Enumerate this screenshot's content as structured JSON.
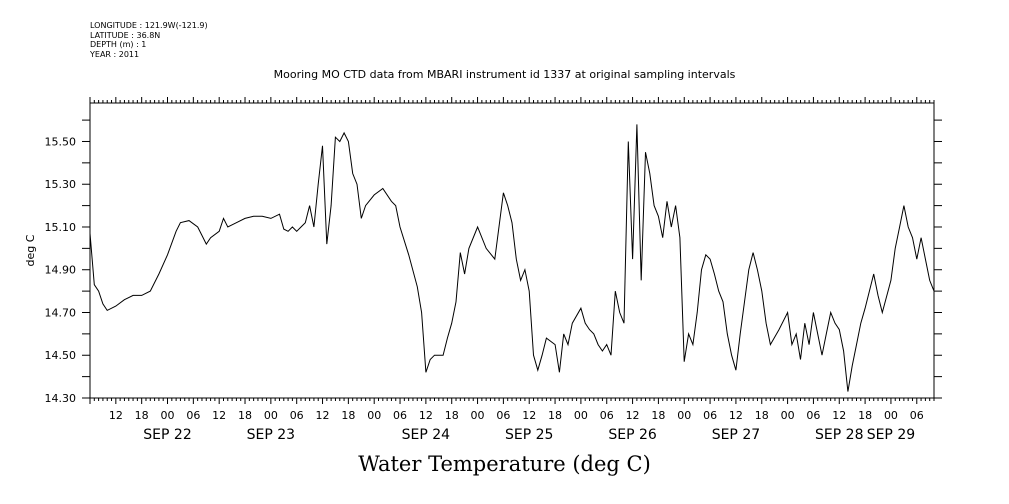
{
  "header": {
    "longitude": "LONGITUDE : 121.9W(-121.9)",
    "latitude": "LATITUDE : 36.8N",
    "depth": "DEPTH (m) : 1",
    "year": "YEAR : 2011"
  },
  "chart_data": {
    "type": "line",
    "title": "Mooring MO CTD data from MBARI instrument id 1337 at original sampling intervals",
    "xlabel": "Water Temperature (deg C)",
    "ylabel": "deg C",
    "ylim": [
      14.3,
      15.68
    ],
    "yticks": [
      "14.30",
      "14.50",
      "14.70",
      "14.90",
      "15.10",
      "15.30",
      "15.50"
    ],
    "xlim": [
      "2011-09-21T06:00",
      "2011-09-29T10:00"
    ],
    "hour_ticks": [
      "12",
      "18",
      "00",
      "06",
      "12",
      "18",
      "00",
      "06",
      "12",
      "18",
      "00",
      "06",
      "12",
      "18",
      "00",
      "06",
      "12",
      "18",
      "00",
      "06",
      "12",
      "18",
      "00",
      "06",
      "12",
      "18",
      "00",
      "06",
      "12",
      "18",
      "00",
      "06"
    ],
    "day_labels": [
      {
        "label": "SEP 22",
        "at": "2011-09-22T00:00"
      },
      {
        "label": "SEP 23",
        "at": "2011-09-23T00:00"
      },
      {
        "label": "SEP 24",
        "at": "2011-09-24T12:00"
      },
      {
        "label": "SEP 25",
        "at": "2011-09-25T12:00"
      },
      {
        "label": "SEP 26",
        "at": "2011-09-26T12:00"
      },
      {
        "label": "SEP 27",
        "at": "2011-09-27T12:00"
      },
      {
        "label": "SEP 28",
        "at": "2011-09-28T12:00"
      },
      {
        "label": "SEP 29",
        "at": "2011-09-29T00:00"
      }
    ],
    "grid": false,
    "series": [
      {
        "points": [
          [
            "2011-09-21T06:00",
            15.07
          ],
          [
            "2011-09-21T07:00",
            14.83
          ],
          [
            "2011-09-21T08:00",
            14.8
          ],
          [
            "2011-09-21T09:00",
            14.74
          ],
          [
            "2011-09-21T10:00",
            14.71
          ],
          [
            "2011-09-21T12:00",
            14.73
          ],
          [
            "2011-09-21T14:00",
            14.76
          ],
          [
            "2011-09-21T16:00",
            14.78
          ],
          [
            "2011-09-21T18:00",
            14.78
          ],
          [
            "2011-09-21T20:00",
            14.8
          ],
          [
            "2011-09-21T22:00",
            14.88
          ],
          [
            "2011-09-22T00:00",
            14.97
          ],
          [
            "2011-09-22T02:00",
            15.08
          ],
          [
            "2011-09-22T03:00",
            15.12
          ],
          [
            "2011-09-22T05:00",
            15.13
          ],
          [
            "2011-09-22T07:00",
            15.1
          ],
          [
            "2011-09-22T08:00",
            15.06
          ],
          [
            "2011-09-22T09:00",
            15.02
          ],
          [
            "2011-09-22T10:00",
            15.05
          ],
          [
            "2011-09-22T12:00",
            15.08
          ],
          [
            "2011-09-22T13:00",
            15.14
          ],
          [
            "2011-09-22T14:00",
            15.1
          ],
          [
            "2011-09-22T16:00",
            15.12
          ],
          [
            "2011-09-22T18:00",
            15.14
          ],
          [
            "2011-09-22T20:00",
            15.15
          ],
          [
            "2011-09-22T22:00",
            15.15
          ],
          [
            "2011-09-23T00:00",
            15.14
          ],
          [
            "2011-09-23T02:00",
            15.16
          ],
          [
            "2011-09-23T03:00",
            15.09
          ],
          [
            "2011-09-23T04:00",
            15.08
          ],
          [
            "2011-09-23T05:00",
            15.1
          ],
          [
            "2011-09-23T06:00",
            15.08
          ],
          [
            "2011-09-23T07:00",
            15.1
          ],
          [
            "2011-09-23T08:00",
            15.12
          ],
          [
            "2011-09-23T09:00",
            15.2
          ],
          [
            "2011-09-23T10:00",
            15.1
          ],
          [
            "2011-09-23T11:00",
            15.3
          ],
          [
            "2011-09-23T12:00",
            15.48
          ],
          [
            "2011-09-23T13:00",
            15.02
          ],
          [
            "2011-09-23T14:00",
            15.2
          ],
          [
            "2011-09-23T15:00",
            15.52
          ],
          [
            "2011-09-23T16:00",
            15.5
          ],
          [
            "2011-09-23T17:00",
            15.54
          ],
          [
            "2011-09-23T18:00",
            15.5
          ],
          [
            "2011-09-23T19:00",
            15.35
          ],
          [
            "2011-09-23T20:00",
            15.3
          ],
          [
            "2011-09-23T21:00",
            15.14
          ],
          [
            "2011-09-23T22:00",
            15.2
          ],
          [
            "2011-09-24T00:00",
            15.25
          ],
          [
            "2011-09-24T02:00",
            15.28
          ],
          [
            "2011-09-24T04:00",
            15.22
          ],
          [
            "2011-09-24T05:00",
            15.2
          ],
          [
            "2011-09-24T06:00",
            15.1
          ],
          [
            "2011-09-24T08:00",
            14.97
          ],
          [
            "2011-09-24T10:00",
            14.82
          ],
          [
            "2011-09-24T11:00",
            14.7
          ],
          [
            "2011-09-24T12:00",
            14.42
          ],
          [
            "2011-09-24T13:00",
            14.48
          ],
          [
            "2011-09-24T14:00",
            14.5
          ],
          [
            "2011-09-24T16:00",
            14.5
          ],
          [
            "2011-09-24T17:00",
            14.58
          ],
          [
            "2011-09-24T18:00",
            14.65
          ],
          [
            "2011-09-24T19:00",
            14.75
          ],
          [
            "2011-09-24T20:00",
            14.98
          ],
          [
            "2011-09-24T21:00",
            14.88
          ],
          [
            "2011-09-24T22:00",
            15.0
          ],
          [
            "2011-09-25T00:00",
            15.1
          ],
          [
            "2011-09-25T02:00",
            15.0
          ],
          [
            "2011-09-25T04:00",
            14.95
          ],
          [
            "2011-09-25T06:00",
            15.26
          ],
          [
            "2011-09-25T07:00",
            15.2
          ],
          [
            "2011-09-25T08:00",
            15.12
          ],
          [
            "2011-09-25T09:00",
            14.95
          ],
          [
            "2011-09-25T10:00",
            14.85
          ],
          [
            "2011-09-25T11:00",
            14.9
          ],
          [
            "2011-09-25T12:00",
            14.8
          ],
          [
            "2011-09-25T13:00",
            14.5
          ],
          [
            "2011-09-25T14:00",
            14.43
          ],
          [
            "2011-09-25T15:00",
            14.5
          ],
          [
            "2011-09-25T16:00",
            14.58
          ],
          [
            "2011-09-25T18:00",
            14.55
          ],
          [
            "2011-09-25T19:00",
            14.42
          ],
          [
            "2011-09-25T20:00",
            14.6
          ],
          [
            "2011-09-25T21:00",
            14.55
          ],
          [
            "2011-09-25T22:00",
            14.65
          ],
          [
            "2011-09-26T00:00",
            14.72
          ],
          [
            "2011-09-26T01:00",
            14.65
          ],
          [
            "2011-09-26T02:00",
            14.62
          ],
          [
            "2011-09-26T03:00",
            14.6
          ],
          [
            "2011-09-26T04:00",
            14.55
          ],
          [
            "2011-09-26T05:00",
            14.52
          ],
          [
            "2011-09-26T06:00",
            14.55
          ],
          [
            "2011-09-26T07:00",
            14.5
          ],
          [
            "2011-09-26T08:00",
            14.8
          ],
          [
            "2011-09-26T09:00",
            14.7
          ],
          [
            "2011-09-26T10:00",
            14.65
          ],
          [
            "2011-09-26T11:00",
            15.5
          ],
          [
            "2011-09-26T12:00",
            14.95
          ],
          [
            "2011-09-26T13:00",
            15.58
          ],
          [
            "2011-09-26T14:00",
            14.85
          ],
          [
            "2011-09-26T15:00",
            15.45
          ],
          [
            "2011-09-26T16:00",
            15.35
          ],
          [
            "2011-09-26T17:00",
            15.2
          ],
          [
            "2011-09-26T18:00",
            15.15
          ],
          [
            "2011-09-26T19:00",
            15.05
          ],
          [
            "2011-09-26T20:00",
            15.22
          ],
          [
            "2011-09-26T21:00",
            15.1
          ],
          [
            "2011-09-26T22:00",
            15.2
          ],
          [
            "2011-09-26T23:00",
            15.05
          ],
          [
            "2011-09-27T00:00",
            14.47
          ],
          [
            "2011-09-27T01:00",
            14.6
          ],
          [
            "2011-09-27T02:00",
            14.55
          ],
          [
            "2011-09-27T03:00",
            14.7
          ],
          [
            "2011-09-27T04:00",
            14.9
          ],
          [
            "2011-09-27T05:00",
            14.97
          ],
          [
            "2011-09-27T06:00",
            14.95
          ],
          [
            "2011-09-27T07:00",
            14.88
          ],
          [
            "2011-09-27T08:00",
            14.8
          ],
          [
            "2011-09-27T09:00",
            14.75
          ],
          [
            "2011-09-27T10:00",
            14.6
          ],
          [
            "2011-09-27T11:00",
            14.5
          ],
          [
            "2011-09-27T12:00",
            14.43
          ],
          [
            "2011-09-27T13:00",
            14.6
          ],
          [
            "2011-09-27T14:00",
            14.75
          ],
          [
            "2011-09-27T15:00",
            14.9
          ],
          [
            "2011-09-27T16:00",
            14.98
          ],
          [
            "2011-09-27T17:00",
            14.9
          ],
          [
            "2011-09-27T18:00",
            14.8
          ],
          [
            "2011-09-27T19:00",
            14.65
          ],
          [
            "2011-09-27T20:00",
            14.55
          ],
          [
            "2011-09-27T22:00",
            14.62
          ],
          [
            "2011-09-28T00:00",
            14.7
          ],
          [
            "2011-09-28T01:00",
            14.55
          ],
          [
            "2011-09-28T02:00",
            14.6
          ],
          [
            "2011-09-28T03:00",
            14.48
          ],
          [
            "2011-09-28T04:00",
            14.65
          ],
          [
            "2011-09-28T05:00",
            14.55
          ],
          [
            "2011-09-28T06:00",
            14.7
          ],
          [
            "2011-09-28T07:00",
            14.6
          ],
          [
            "2011-09-28T08:00",
            14.5
          ],
          [
            "2011-09-28T09:00",
            14.6
          ],
          [
            "2011-09-28T10:00",
            14.7
          ],
          [
            "2011-09-28T11:00",
            14.65
          ],
          [
            "2011-09-28T12:00",
            14.62
          ],
          [
            "2011-09-28T13:00",
            14.52
          ],
          [
            "2011-09-28T14:00",
            14.33
          ],
          [
            "2011-09-28T15:00",
            14.45
          ],
          [
            "2011-09-28T16:00",
            14.55
          ],
          [
            "2011-09-28T17:00",
            14.65
          ],
          [
            "2011-09-28T18:00",
            14.72
          ],
          [
            "2011-09-28T19:00",
            14.8
          ],
          [
            "2011-09-28T20:00",
            14.88
          ],
          [
            "2011-09-28T21:00",
            14.78
          ],
          [
            "2011-09-28T22:00",
            14.7
          ],
          [
            "2011-09-29T00:00",
            14.85
          ],
          [
            "2011-09-29T01:00",
            15.0
          ],
          [
            "2011-09-29T02:00",
            15.1
          ],
          [
            "2011-09-29T03:00",
            15.2
          ],
          [
            "2011-09-29T04:00",
            15.1
          ],
          [
            "2011-09-29T05:00",
            15.05
          ],
          [
            "2011-09-29T06:00",
            14.95
          ],
          [
            "2011-09-29T07:00",
            15.05
          ],
          [
            "2011-09-29T08:00",
            14.95
          ],
          [
            "2011-09-29T09:00",
            14.85
          ],
          [
            "2011-09-29T10:00",
            14.8
          ]
        ]
      }
    ]
  }
}
